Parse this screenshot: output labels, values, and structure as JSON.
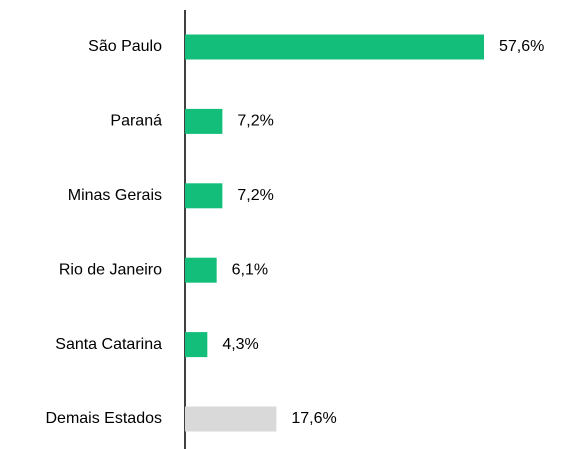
{
  "chart_data": {
    "type": "bar",
    "orientation": "horizontal",
    "categories": [
      "São Paulo",
      "Paraná",
      "Minas Gerais",
      "Rio de Janeiro",
      "Santa Catarina",
      "Demais Estados"
    ],
    "values": [
      57.6,
      7.2,
      7.2,
      6.1,
      4.3,
      17.6
    ],
    "value_labels": [
      "57,6%",
      "7,2%",
      "7,2%",
      "6,1%",
      "4,3%",
      "17,6%"
    ],
    "colors": [
      "#13be7a",
      "#13be7a",
      "#13be7a",
      "#13be7a",
      "#13be7a",
      "#d9d9d9"
    ]
  }
}
